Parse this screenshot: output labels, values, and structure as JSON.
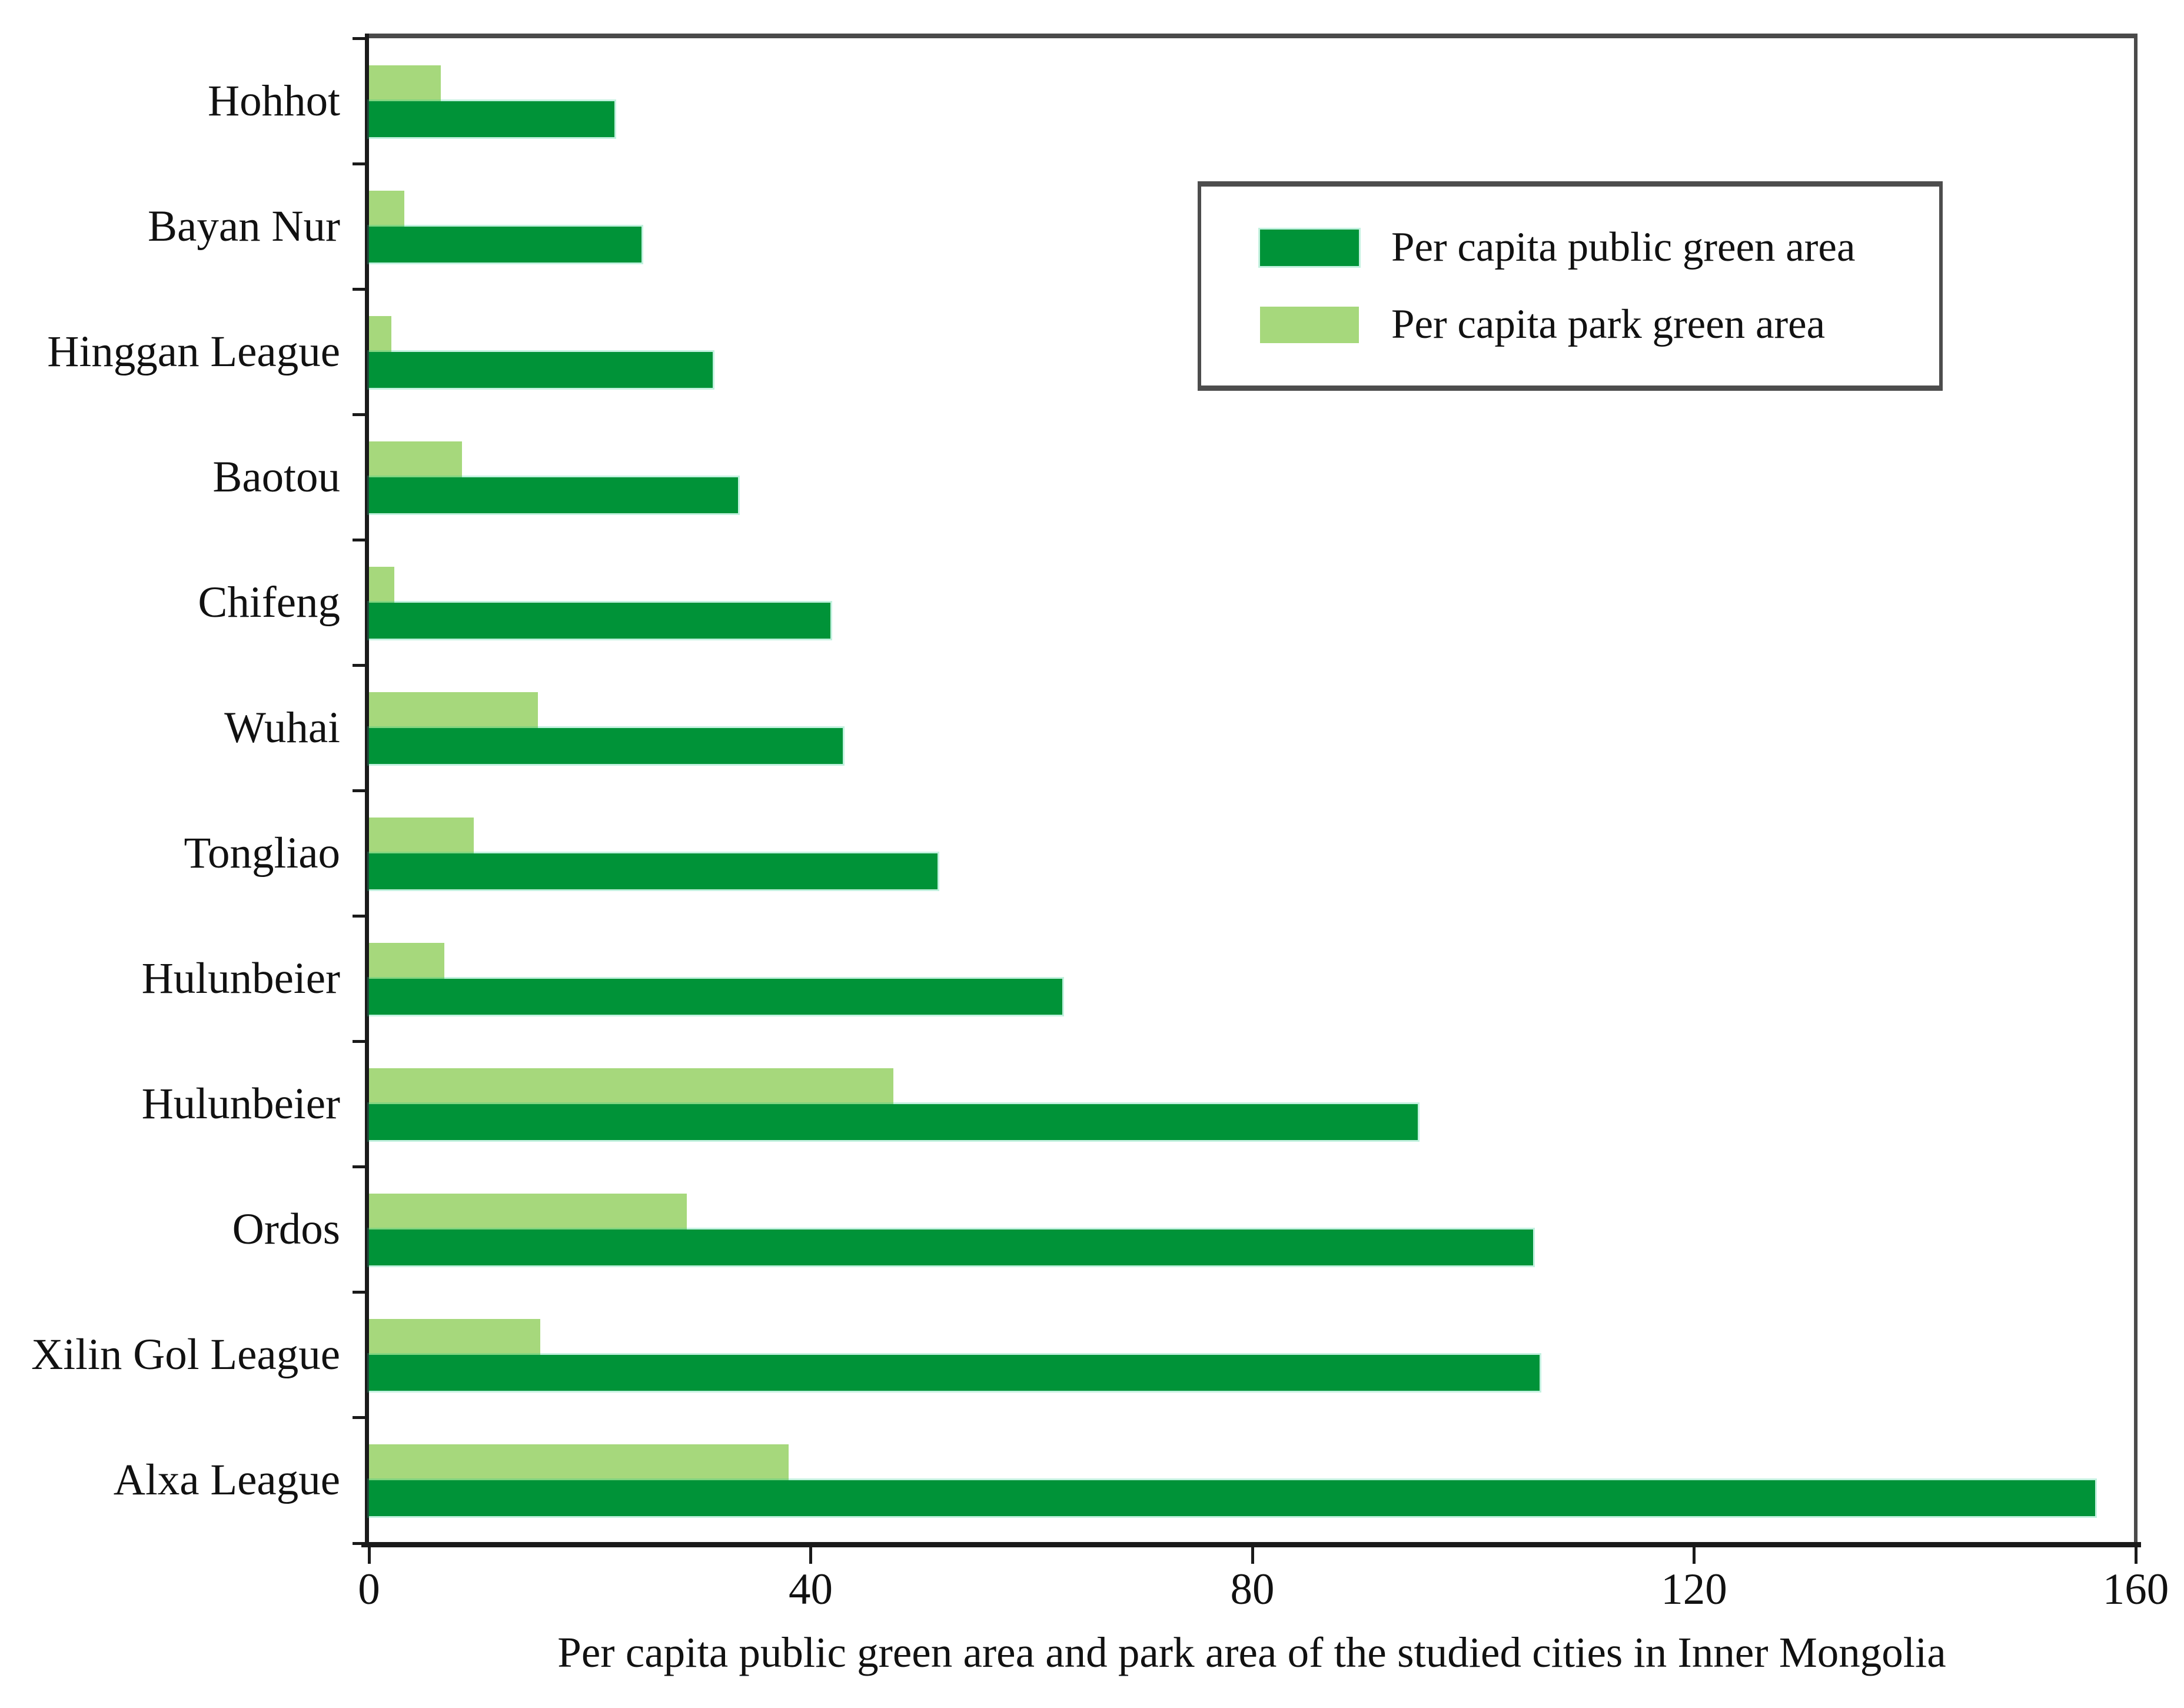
{
  "chart_data": {
    "type": "bar",
    "orientation": "horizontal",
    "xlabel": "Per capita public green area and park area of the studied cities in Inner Mongolia",
    "categories": [
      "Hohhot",
      "Bayan Nur",
      "Hinggan League",
      "Baotou",
      "Chifeng",
      "Wuhai",
      "Tongliao",
      "Hulunbeier",
      "Hulunbeier",
      "Ordos",
      "Xilin Gol League",
      "Alxa League"
    ],
    "series": [
      {
        "name": "Per capita public green area",
        "color": "#009338",
        "values": [
          22.2,
          24.7,
          31.1,
          33.4,
          41.8,
          42.9,
          51.5,
          62.8,
          95.0,
          105.4,
          106.0,
          156.3
        ]
      },
      {
        "name": "Per capita park green area",
        "color": "#A6D87C",
        "values": [
          6.5,
          3.2,
          2.0,
          8.4,
          2.3,
          15.3,
          9.5,
          6.8,
          47.5,
          28.8,
          15.5,
          38.0
        ]
      }
    ],
    "x_ticks": [
      0,
      40,
      80,
      120,
      160
    ],
    "xlim": [
      0,
      160
    ],
    "grid": false,
    "legend_position": "top-right",
    "bar_order_top_to_bottom_in_group": [
      "Per capita park green area",
      "Per capita public green area"
    ]
  },
  "legend": {
    "items": [
      {
        "label": "Per capita public green area"
      },
      {
        "label": "Per capita park green area"
      }
    ]
  },
  "colors": {
    "public_green": "#009338",
    "park_green": "#A6D87C",
    "axis": "#1a1a1a",
    "frame": "#4a4a4a",
    "text": "#111111",
    "background": "#ffffff"
  }
}
